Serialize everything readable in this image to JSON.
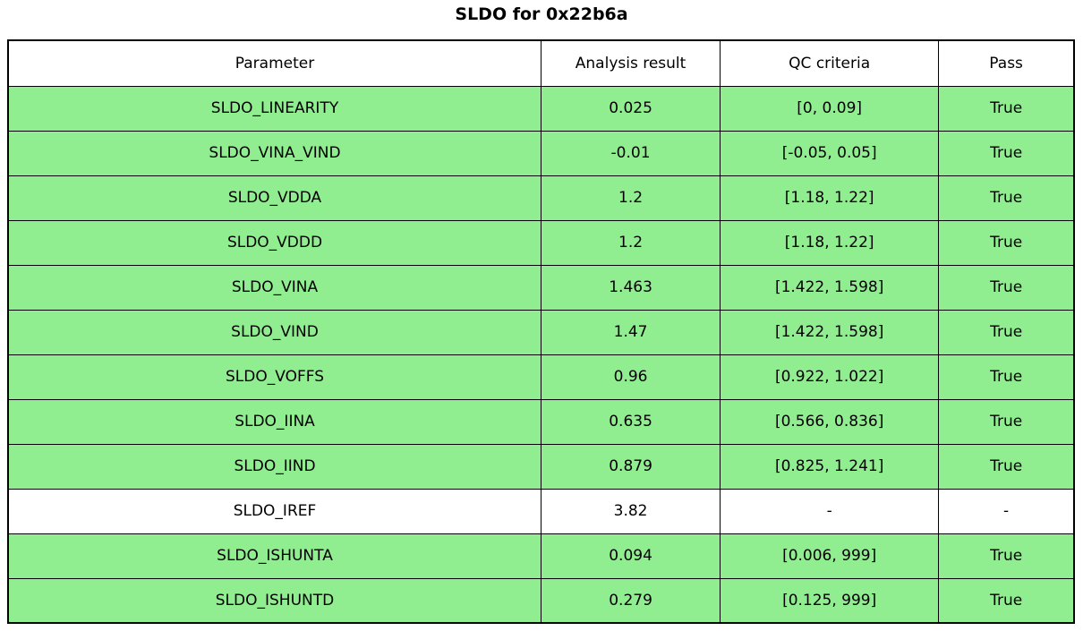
{
  "chart_data": {
    "type": "table",
    "title": "SLDO for 0x22b6a",
    "columns": [
      "Parameter",
      "Analysis result",
      "QC criteria",
      "Pass"
    ],
    "rows": [
      {
        "cells": [
          "SLDO_LINEARITY",
          "0.025",
          "[0, 0.09]",
          "True"
        ],
        "highlight": true
      },
      {
        "cells": [
          "SLDO_VINA_VIND",
          "-0.01",
          "[-0.05, 0.05]",
          "True"
        ],
        "highlight": true
      },
      {
        "cells": [
          "SLDO_VDDA",
          "1.2",
          "[1.18, 1.22]",
          "True"
        ],
        "highlight": true
      },
      {
        "cells": [
          "SLDO_VDDD",
          "1.2",
          "[1.18, 1.22]",
          "True"
        ],
        "highlight": true
      },
      {
        "cells": [
          "SLDO_VINA",
          "1.463",
          "[1.422, 1.598]",
          "True"
        ],
        "highlight": true
      },
      {
        "cells": [
          "SLDO_VIND",
          "1.47",
          "[1.422, 1.598]",
          "True"
        ],
        "highlight": true
      },
      {
        "cells": [
          "SLDO_VOFFS",
          "0.96",
          "[0.922, 1.022]",
          "True"
        ],
        "highlight": true
      },
      {
        "cells": [
          "SLDO_IINA",
          "0.635",
          "[0.566, 0.836]",
          "True"
        ],
        "highlight": true
      },
      {
        "cells": [
          "SLDO_IIND",
          "0.879",
          "[0.825, 1.241]",
          "True"
        ],
        "highlight": true
      },
      {
        "cells": [
          "SLDO_IREF",
          "3.82",
          "-",
          "-"
        ],
        "highlight": false
      },
      {
        "cells": [
          "SLDO_ISHUNTA",
          "0.094",
          "[0.006, 999]",
          "True"
        ],
        "highlight": true
      },
      {
        "cells": [
          "SLDO_ISHUNTD",
          "0.279",
          "[0.125, 999]",
          "True"
        ],
        "highlight": true
      }
    ],
    "colors": {
      "pass_row_bg": "#90EE90",
      "neutral_row_bg": "#FFFFFF",
      "header_bg": "#FFFFFF",
      "border": "#000000",
      "text": "#000000"
    },
    "layout": {
      "legend": false,
      "grid": true,
      "header_row": true
    }
  }
}
